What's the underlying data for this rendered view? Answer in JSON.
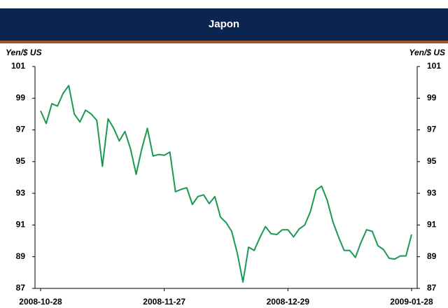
{
  "chart_data": {
    "type": "line",
    "title": "Japon",
    "ylabel": "Yen/$ US",
    "y2label": "Yen/$ US",
    "categories": [
      "2008-10-28",
      null,
      null,
      null,
      null,
      null,
      null,
      null,
      null,
      null,
      null,
      null,
      null,
      null,
      null,
      null,
      null,
      null,
      null,
      null,
      null,
      null,
      "2008-11-27",
      null,
      null,
      null,
      null,
      null,
      null,
      null,
      null,
      null,
      null,
      null,
      null,
      null,
      null,
      null,
      null,
      null,
      null,
      null,
      null,
      null,
      "2008-12-29",
      null,
      null,
      null,
      null,
      null,
      null,
      null,
      null,
      null,
      null,
      null,
      null,
      null,
      null,
      null,
      null,
      null,
      null,
      null,
      null,
      null,
      "2009-01-28"
    ],
    "series": [
      {
        "name": "Japon",
        "color": "#1a9a50",
        "values": [
          98.2,
          97.4,
          98.65,
          98.5,
          99.3,
          99.8,
          98.0,
          97.5,
          98.25,
          98.0,
          97.6,
          94.7,
          97.7,
          97.1,
          96.3,
          96.9,
          95.8,
          94.2,
          95.8,
          97.1,
          95.35,
          95.45,
          95.4,
          95.6,
          93.1,
          93.25,
          93.35,
          92.3,
          92.8,
          92.9,
          92.35,
          92.8,
          91.5,
          91.15,
          90.6,
          89.2,
          87.4,
          89.6,
          89.4,
          90.2,
          90.9,
          90.45,
          90.4,
          90.7,
          90.7,
          90.25,
          90.75,
          91.0,
          91.85,
          93.2,
          93.45,
          92.55,
          91.2,
          90.25,
          89.4,
          89.4,
          88.95,
          89.9,
          90.7,
          90.6,
          89.7,
          89.45,
          88.9,
          88.85,
          89.05,
          89.05,
          90.4
        ]
      }
    ],
    "ylim": [
      87,
      101
    ],
    "yticks": [
      87,
      89,
      91,
      93,
      95,
      97,
      99,
      101
    ],
    "y2lim": [
      87,
      101
    ],
    "y2ticks": [
      87,
      89,
      91,
      93,
      95,
      97,
      99,
      101
    ],
    "grid": false
  }
}
